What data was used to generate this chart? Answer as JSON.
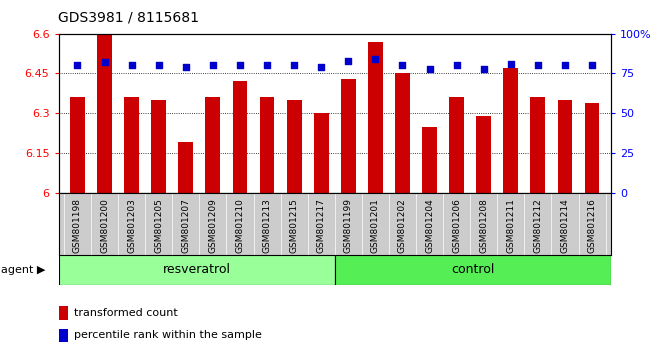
{
  "title": "GDS3981 / 8115681",
  "samples": [
    "GSM801198",
    "GSM801200",
    "GSM801203",
    "GSM801205",
    "GSM801207",
    "GSM801209",
    "GSM801210",
    "GSM801213",
    "GSM801215",
    "GSM801217",
    "GSM801199",
    "GSM801201",
    "GSM801202",
    "GSM801204",
    "GSM801206",
    "GSM801208",
    "GSM801211",
    "GSM801212",
    "GSM801214",
    "GSM801216"
  ],
  "bar_values": [
    6.36,
    6.6,
    6.36,
    6.35,
    6.19,
    6.36,
    6.42,
    6.36,
    6.35,
    6.3,
    6.43,
    6.57,
    6.45,
    6.25,
    6.36,
    6.29,
    6.47,
    6.36,
    6.35,
    6.34
  ],
  "percentile_values": [
    80,
    82,
    80,
    80,
    79,
    80,
    80,
    80,
    80,
    79,
    83,
    84,
    80,
    78,
    80,
    78,
    81,
    80,
    80,
    80
  ],
  "bar_color": "#cc0000",
  "dot_color": "#0000cc",
  "bar_bottom": 6.0,
  "ylim_left": [
    6.0,
    6.6
  ],
  "ylim_right": [
    0,
    100
  ],
  "yticks_left": [
    6.0,
    6.15,
    6.3,
    6.45,
    6.6
  ],
  "yticks_right": [
    0,
    25,
    50,
    75,
    100
  ],
  "ytick_labels_left": [
    "6",
    "6.15",
    "6.3",
    "6.45",
    "6.6"
  ],
  "ytick_labels_right": [
    "0",
    "25",
    "50",
    "75",
    "100%"
  ],
  "grid_values": [
    6.15,
    6.3,
    6.45
  ],
  "resveratrol_color": "#99ff99",
  "control_color": "#55ee55",
  "legend_bar": "transformed count",
  "legend_dot": "percentile rank within the sample",
  "xticklabel_bg": "#cccccc",
  "plot_bg_color": "#ffffff",
  "n_resveratrol": 10,
  "n_control": 10
}
